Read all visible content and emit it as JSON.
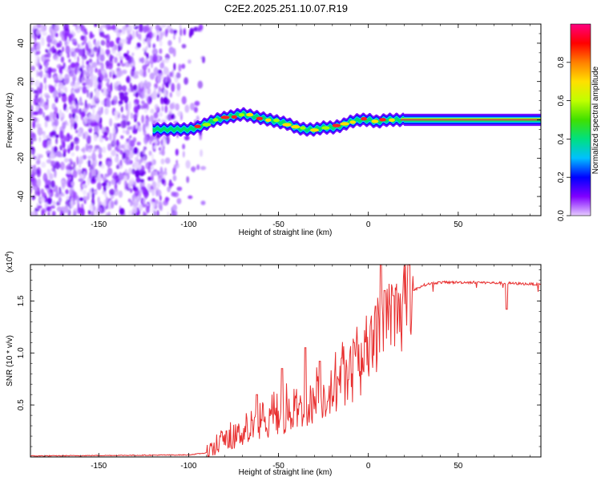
{
  "title": "C2E2.2025.251.10.07.R19",
  "chart_data": [
    {
      "type": "heatmap",
      "name": "spectrogram",
      "xlabel": "Height of straight line (km)",
      "ylabel": "Frequency (Hz)",
      "xlim": [
        -188,
        96
      ],
      "ylim": [
        -50,
        50
      ],
      "xticks": [
        -150,
        -100,
        -50,
        0,
        50
      ],
      "yticks": [
        -40,
        -20,
        0,
        20,
        40
      ],
      "noise_region_x": [
        -188,
        -103
      ],
      "signal_start_x": -120,
      "ridge": {
        "x": [
          -120,
          -110,
          -100,
          -95,
          -90,
          -85,
          -80,
          -75,
          -70,
          -65,
          -60,
          -55,
          -50,
          -45,
          -40,
          -35,
          -30,
          -25,
          -20,
          -15,
          -10,
          -5,
          0,
          5,
          10,
          15,
          20,
          30,
          40,
          50,
          60,
          70,
          80,
          96
        ],
        "freq": [
          -5,
          -5,
          -5,
          -4,
          -2,
          0,
          1,
          2,
          3,
          2,
          1,
          0,
          -1,
          -2,
          -4,
          -5,
          -5,
          -4,
          -4,
          -3,
          -1,
          0,
          0,
          -1,
          0,
          0,
          0,
          0,
          0,
          0,
          0,
          0,
          0,
          0
        ]
      },
      "colorbar": {
        "label": "Normalized spectral amplitude",
        "range": [
          0.0,
          1.0
        ],
        "ticks": [
          "0.0",
          "0.2",
          "0.4",
          "0.6",
          "0.8"
        ],
        "colors": [
          "#e6ccff",
          "#8000ff",
          "#0000ff",
          "#00c0ff",
          "#00e080",
          "#40e000",
          "#c0ff00",
          "#ffe000",
          "#ff8000",
          "#ff0000",
          "#ff0080"
        ]
      }
    },
    {
      "type": "line",
      "name": "snr",
      "xlabel": "Height of straight line (km)",
      "ylabel": "SNR (10 * v/v)",
      "yscale_note_base": "(x10",
      "yscale_note_exp": "4",
      "yscale_note_end": ")",
      "xlim": [
        -188,
        96
      ],
      "ylim": [
        0,
        1.85
      ],
      "xticks": [
        -150,
        -100,
        -50,
        0,
        50
      ],
      "yticks": [
        0.5,
        1.0,
        1.5
      ],
      "ytick_labels": [
        "0.5",
        "1.0",
        "1.5"
      ],
      "color": "#e83030",
      "envelope": {
        "x": [
          -188,
          -100,
          -90,
          -85,
          -80,
          -70,
          -60,
          -50,
          -40,
          -30,
          -20,
          -10,
          -5,
          0,
          5,
          10,
          15,
          20,
          25,
          30,
          35,
          40,
          60,
          80,
          96
        ],
        "y": [
          0.01,
          0.02,
          0.04,
          0.1,
          0.15,
          0.25,
          0.3,
          0.35,
          0.45,
          0.55,
          0.65,
          0.8,
          0.9,
          1.0,
          1.15,
          1.3,
          1.4,
          1.5,
          1.6,
          1.65,
          1.67,
          1.68,
          1.68,
          1.67,
          1.66
        ]
      },
      "spikes": [
        {
          "x": -62,
          "y": 0.6
        },
        {
          "x": -48,
          "y": 0.85
        },
        {
          "x": -35,
          "y": 1.05
        },
        {
          "x": -27,
          "y": 0.92
        },
        {
          "x": -15,
          "y": 0.95
        },
        {
          "x": -8,
          "y": 1.1
        },
        {
          "x": 4,
          "y": 1.45
        },
        {
          "x": 7,
          "y": 1.85
        },
        {
          "x": 9,
          "y": 1.6
        },
        {
          "x": 14,
          "y": 1.55
        },
        {
          "x": 77,
          "y": 1.42
        }
      ]
    }
  ]
}
